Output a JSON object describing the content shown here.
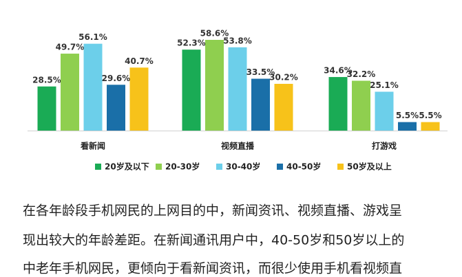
{
  "chart_data": {
    "type": "bar",
    "categories": [
      "看新闻",
      "视频直播",
      "打游戏"
    ],
    "series": [
      {
        "name": "20岁及以下",
        "color": "#1aab55",
        "values": [
          28.5,
          52.3,
          34.6
        ],
        "value_labels": [
          "28.5%",
          "52.3%",
          "34.6%"
        ]
      },
      {
        "name": "20-30岁",
        "color": "#8fcf4f",
        "values": [
          49.7,
          58.6,
          32.2
        ],
        "value_labels": [
          "49.7%",
          "58.6%",
          "32.2%"
        ]
      },
      {
        "name": "30-40岁",
        "color": "#6ccfea",
        "values": [
          56.1,
          53.8,
          25.1
        ],
        "value_labels": [
          "56.1%",
          "53.8%",
          "25.1%"
        ]
      },
      {
        "name": "40-50岁",
        "color": "#1a6fa8",
        "values": [
          29.6,
          33.5,
          5.5
        ],
        "value_labels": [
          "29.6%",
          "33.5%",
          "5.5%"
        ]
      },
      {
        "name": "50岁及以上",
        "color": "#f7c21a",
        "values": [
          40.7,
          30.2,
          5.5
        ],
        "value_labels": [
          "40.7%",
          "30.2%",
          "5.5%"
        ]
      }
    ]
  },
  "paragraph": [
    "在各年龄段手机网民的上网目的中，新闻资讯、视频直播、游戏呈",
    "现出较大的年龄差距。在新闻通讯用户中，40-50岁和50岁以上的",
    "中老年手机网民，更倾向于看新闻资讯，而很少使用手机看视频直"
  ]
}
